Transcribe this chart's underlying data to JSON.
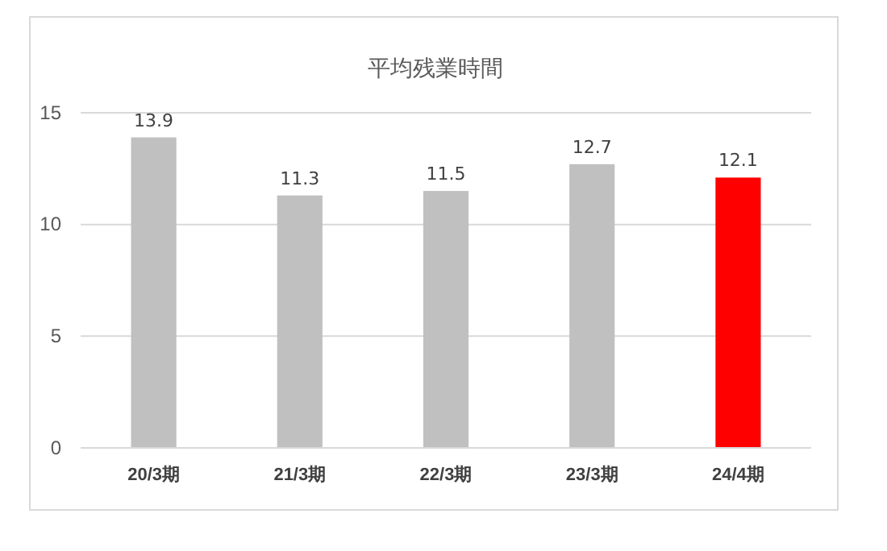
{
  "chart_data": {
    "type": "bar",
    "title": "平均残業時間",
    "categories": [
      "20/3期",
      "21/3期",
      "22/3期",
      "23/3期",
      "24/4期"
    ],
    "values": [
      13.9,
      11.3,
      11.5,
      12.7,
      12.1
    ],
    "colors": [
      "#c0c0c0",
      "#c0c0c0",
      "#c0c0c0",
      "#c0c0c0",
      "#ff0000"
    ],
    "ylim": [
      0,
      15
    ],
    "yticks": [
      0,
      5,
      10,
      15
    ],
    "grid": "y",
    "data_labels": true
  }
}
